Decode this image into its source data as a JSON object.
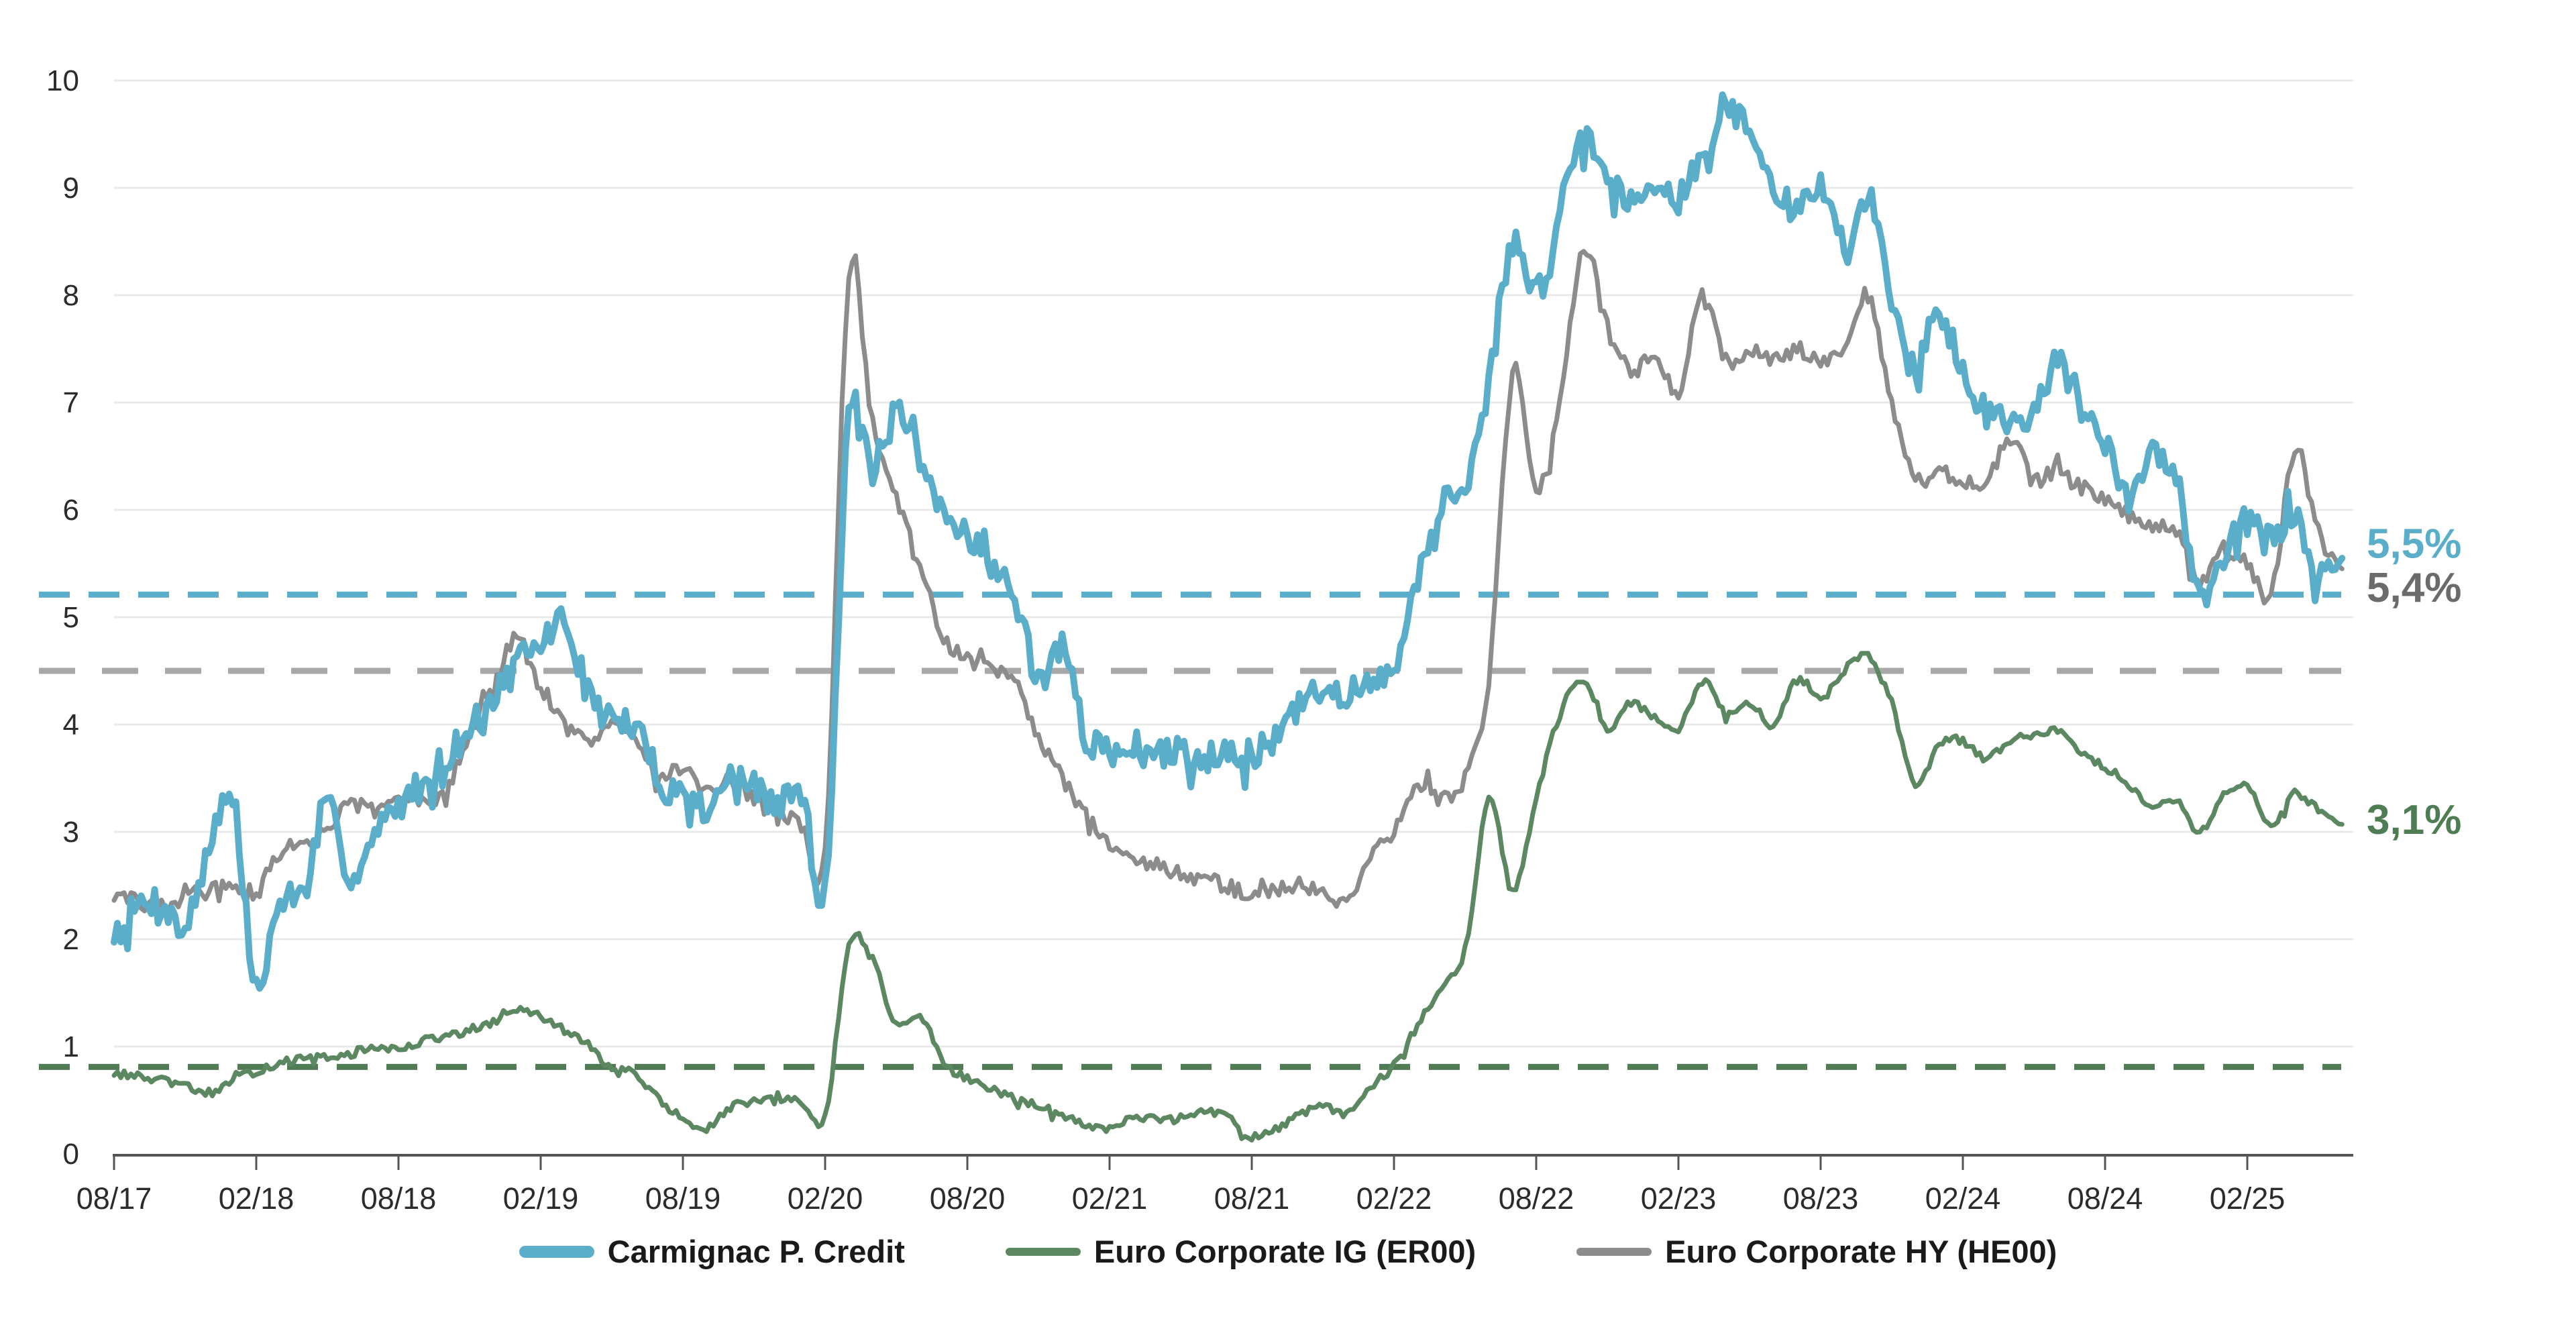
{
  "chart_data": {
    "type": "line",
    "title": "",
    "grid": "horizontal",
    "y_axis": {
      "min": 0,
      "max": 10,
      "tick_step": 1,
      "tick_labels": [
        "0",
        "1",
        "2",
        "3",
        "4",
        "5",
        "6",
        "7",
        "8",
        "9",
        "10"
      ]
    },
    "x_axis": {
      "tick_labels": [
        "08/17",
        "02/18",
        "08/18",
        "02/19",
        "08/19",
        "02/20",
        "08/20",
        "02/21",
        "08/21",
        "02/22",
        "08/22",
        "02/23",
        "08/23",
        "02/24",
        "08/24",
        "02/25"
      ],
      "months_per_tick": 6,
      "total_months": 94
    },
    "series": [
      {
        "name": "Euro Corporate HY (HE00)",
        "color": "#8c8c8c",
        "line_width": 7,
        "noise": 0.075,
        "seed": 29,
        "end_label": {
          "text": "5,4%",
          "value": 5.28,
          "color": "#6b6b6b"
        },
        "reference_line": {
          "value": 4.5,
          "color": "#a8a8a8",
          "dash": "54 40"
        },
        "monthly_values": [
          2.4,
          2.35,
          2.3,
          2.4,
          2.45,
          2.5,
          2.45,
          2.8,
          2.9,
          3.05,
          3.25,
          3.2,
          3.3,
          3.3,
          3.4,
          3.9,
          4.35,
          4.8,
          4.3,
          4.0,
          3.85,
          4.05,
          3.9,
          3.5,
          3.6,
          3.35,
          3.5,
          3.3,
          3.2,
          3.05,
          2.85,
          8.15,
          6.8,
          6.1,
          5.5,
          4.8,
          4.65,
          4.5,
          4.4,
          3.9,
          3.5,
          3.15,
          2.9,
          2.75,
          2.7,
          2.6,
          2.55,
          2.5,
          2.4,
          2.45,
          2.5,
          2.45,
          2.35,
          2.8,
          3.0,
          3.45,
          3.3,
          3.5,
          4.4,
          7.3,
          6.2,
          7.0,
          8.5,
          7.7,
          7.3,
          7.45,
          7.1,
          8.0,
          7.4,
          7.5,
          7.4,
          7.5,
          7.4,
          7.55,
          8.0,
          7.0,
          6.3,
          6.35,
          6.25,
          6.3,
          6.65,
          6.3,
          6.35,
          6.2,
          6.1,
          5.95,
          5.85,
          5.8,
          5.35,
          5.6,
          5.5,
          5.2,
          6.55,
          5.8,
          5.45
        ]
      },
      {
        "name": "Euro Corporate IG (ER00)",
        "color": "#5c8861",
        "line_width": 7,
        "noise": 0.038,
        "seed": 13,
        "end_label": {
          "text": "3,1%",
          "value": 3.12,
          "color": "#4e7d53"
        },
        "reference_line": {
          "value": 0.81,
          "color": "#4f7c55",
          "dash": "46 28"
        },
        "monthly_values": [
          0.75,
          0.72,
          0.68,
          0.63,
          0.57,
          0.68,
          0.77,
          0.85,
          0.88,
          0.9,
          0.92,
          1.0,
          0.97,
          1.05,
          1.1,
          1.13,
          1.22,
          1.35,
          1.27,
          1.15,
          1.02,
          0.78,
          0.75,
          0.5,
          0.33,
          0.23,
          0.43,
          0.48,
          0.5,
          0.48,
          0.35,
          1.95,
          1.8,
          1.2,
          1.3,
          0.85,
          0.7,
          0.6,
          0.52,
          0.45,
          0.36,
          0.26,
          0.25,
          0.35,
          0.32,
          0.33,
          0.42,
          0.33,
          0.16,
          0.22,
          0.36,
          0.44,
          0.38,
          0.6,
          0.82,
          1.2,
          1.55,
          1.9,
          3.3,
          2.45,
          3.3,
          4.1,
          4.4,
          3.95,
          4.2,
          4.05,
          3.95,
          4.4,
          4.1,
          4.2,
          4.0,
          4.45,
          4.25,
          4.5,
          4.65,
          4.2,
          3.45,
          3.8,
          3.85,
          3.67,
          3.85,
          3.9,
          3.93,
          3.75,
          3.6,
          3.45,
          3.25,
          3.3,
          3.0,
          3.35,
          3.43,
          3.05,
          3.36,
          3.2,
          3.07
        ]
      },
      {
        "name": "Carmignac P. Credit",
        "color": "#5baec9",
        "line_width": 10,
        "noise": 0.15,
        "seed": 7,
        "end_label": {
          "text": "5,5%",
          "value": 5.69,
          "color": "#5baec9"
        },
        "reference_line": {
          "value": 5.21,
          "color": "#5baec9",
          "dash": "46 28"
        },
        "monthly_values": [
          2.05,
          2.3,
          2.35,
          2.1,
          2.9,
          3.25,
          1.55,
          2.35,
          2.45,
          3.2,
          2.6,
          2.95,
          3.25,
          3.45,
          3.7,
          3.95,
          4.25,
          4.55,
          4.75,
          4.95,
          4.3,
          4.05,
          3.95,
          3.5,
          3.35,
          3.25,
          3.5,
          3.4,
          3.25,
          3.35,
          2.5,
          6.9,
          6.3,
          6.9,
          6.4,
          5.95,
          5.8,
          5.5,
          5.15,
          4.45,
          4.7,
          3.9,
          3.75,
          3.8,
          3.7,
          3.75,
          3.7,
          3.8,
          3.7,
          3.9,
          4.15,
          4.3,
          4.3,
          4.35,
          4.55,
          5.4,
          5.9,
          6.15,
          7.2,
          8.5,
          8.0,
          8.8,
          9.5,
          9.1,
          8.9,
          9.1,
          8.9,
          9.3,
          9.75,
          9.5,
          9.0,
          8.8,
          9.0,
          8.5,
          8.9,
          8.0,
          7.4,
          7.8,
          7.3,
          6.9,
          6.8,
          7.0,
          7.35,
          7.0,
          6.6,
          6.1,
          6.5,
          6.3,
          5.25,
          5.6,
          5.9,
          5.7,
          5.95,
          5.4,
          5.55
        ]
      }
    ]
  },
  "legend": {
    "items": [
      {
        "label": "Carmignac P. Credit",
        "color": "#5baec9",
        "thickness": 18
      },
      {
        "label": "Euro Corporate IG (ER00)",
        "color": "#5c8861",
        "thickness": 12
      },
      {
        "label": "Euro Corporate HY (HE00)",
        "color": "#8c8c8c",
        "thickness": 12
      }
    ]
  }
}
